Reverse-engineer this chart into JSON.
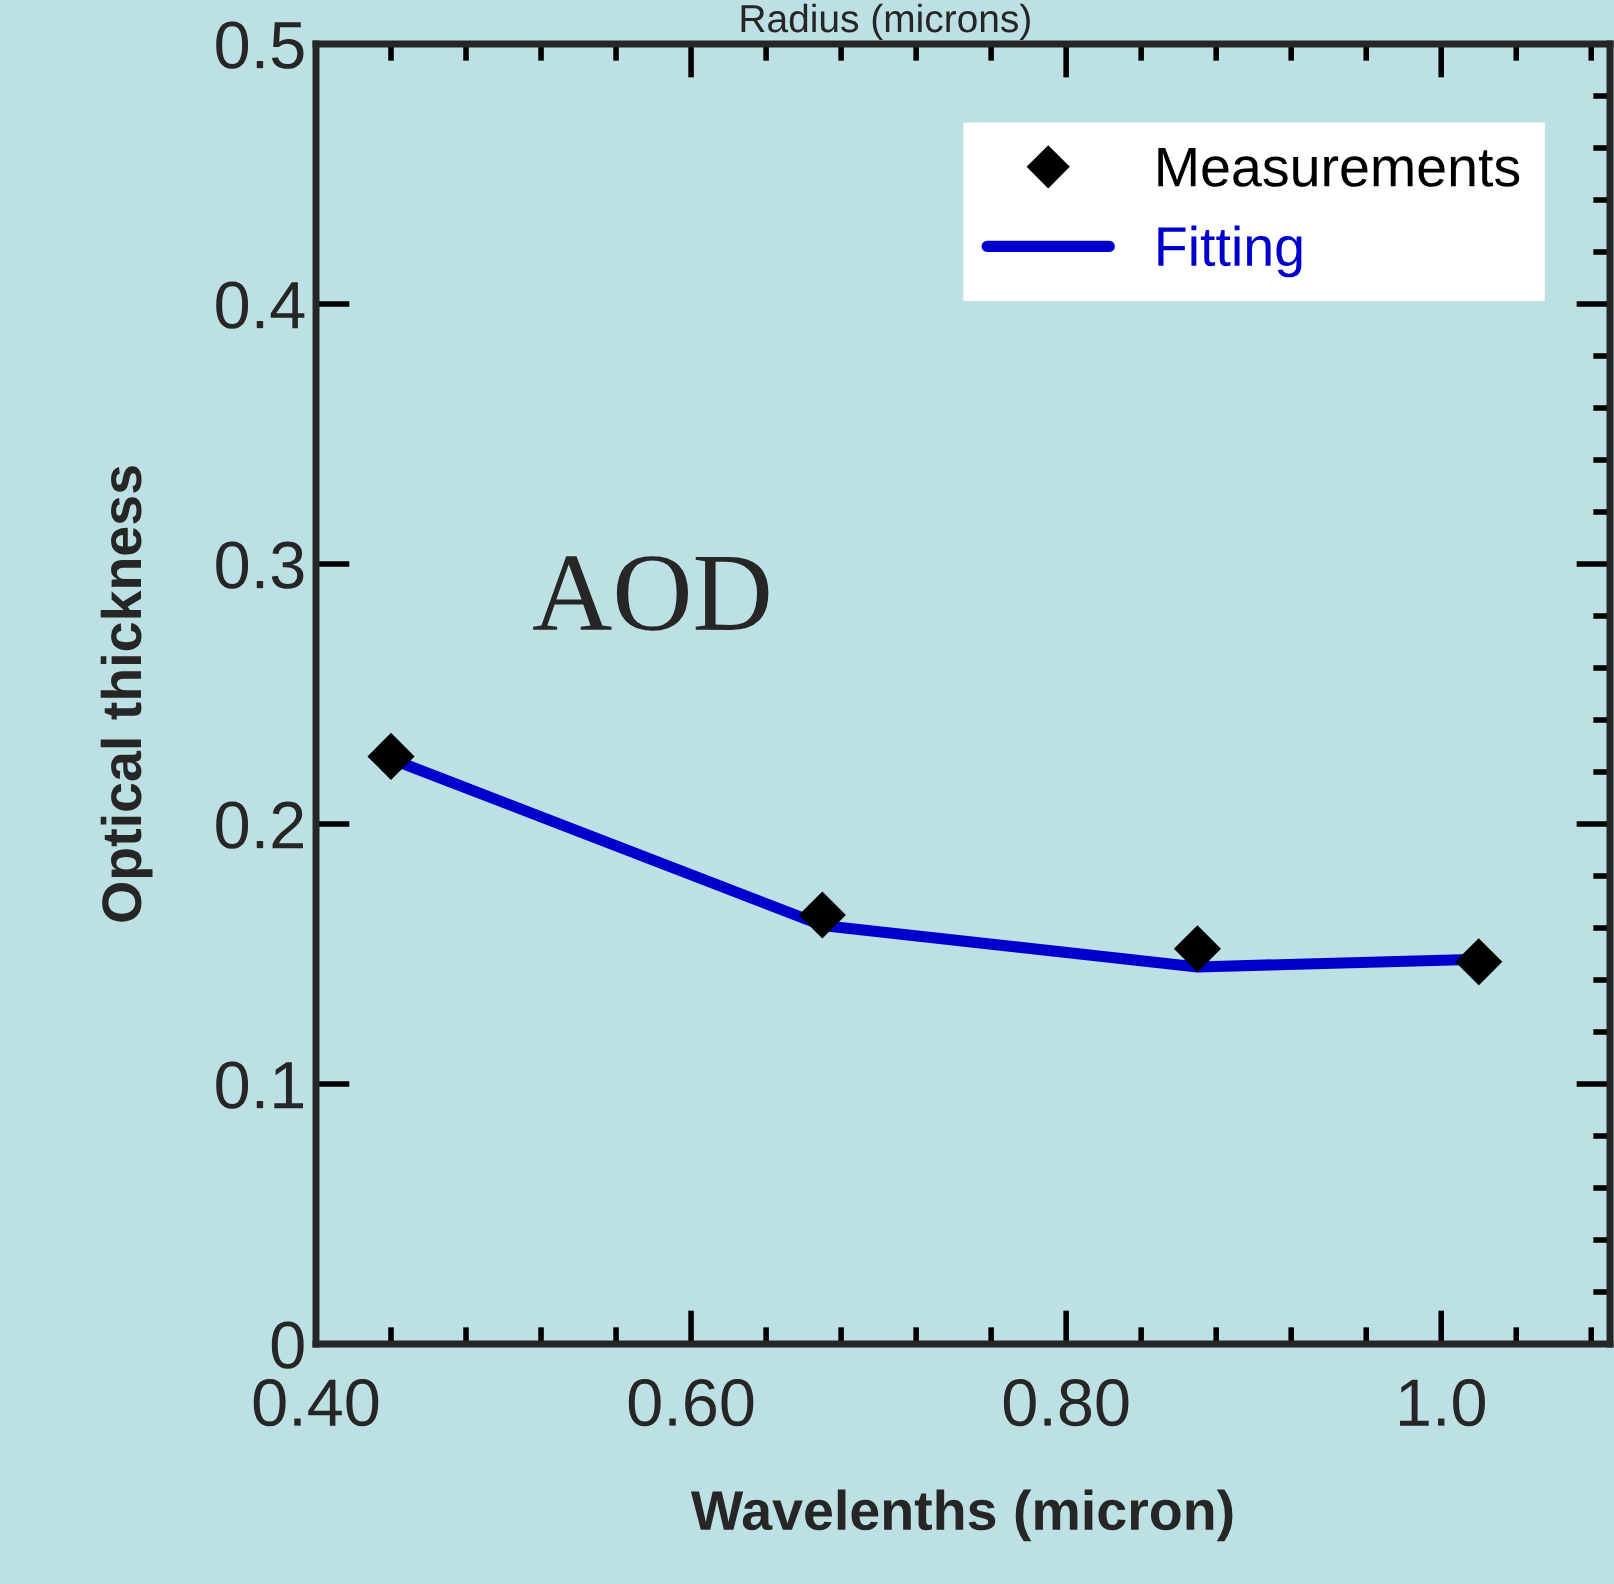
{
  "chart_data": {
    "type": "line",
    "xlabel": "Wavelenths (micron)",
    "ylabel": "Optical thickness",
    "annotations": [
      "AOD",
      "Radius (microns)"
    ],
    "series": [
      {
        "name": "Measurements",
        "type": "scatter",
        "color": "#000000",
        "marker": "diamond",
        "x": [
          0.44,
          0.67,
          0.87,
          1.02
        ],
        "values": [
          0.226,
          0.165,
          0.152,
          0.147
        ]
      },
      {
        "name": "Fitting",
        "color": "#0000cc",
        "marker": "none",
        "x": [
          0.44,
          0.67,
          0.87,
          1.02
        ],
        "values": [
          0.225,
          0.161,
          0.145,
          0.148
        ]
      }
    ],
    "xlim": [
      0.4,
      1.09
    ],
    "xticks": [
      {
        "value": 0.4,
        "label": "0.40"
      },
      {
        "value": 0.6,
        "label": "0.60"
      },
      {
        "value": 0.8,
        "label": "0.80"
      },
      {
        "value": 1.0,
        "label": "1.0"
      }
    ],
    "ylim": [
      0,
      0.5
    ],
    "yticks": [
      0,
      0.1,
      0.2,
      0.3,
      0.4,
      0.5
    ],
    "grid": false,
    "legend": "top right"
  }
}
